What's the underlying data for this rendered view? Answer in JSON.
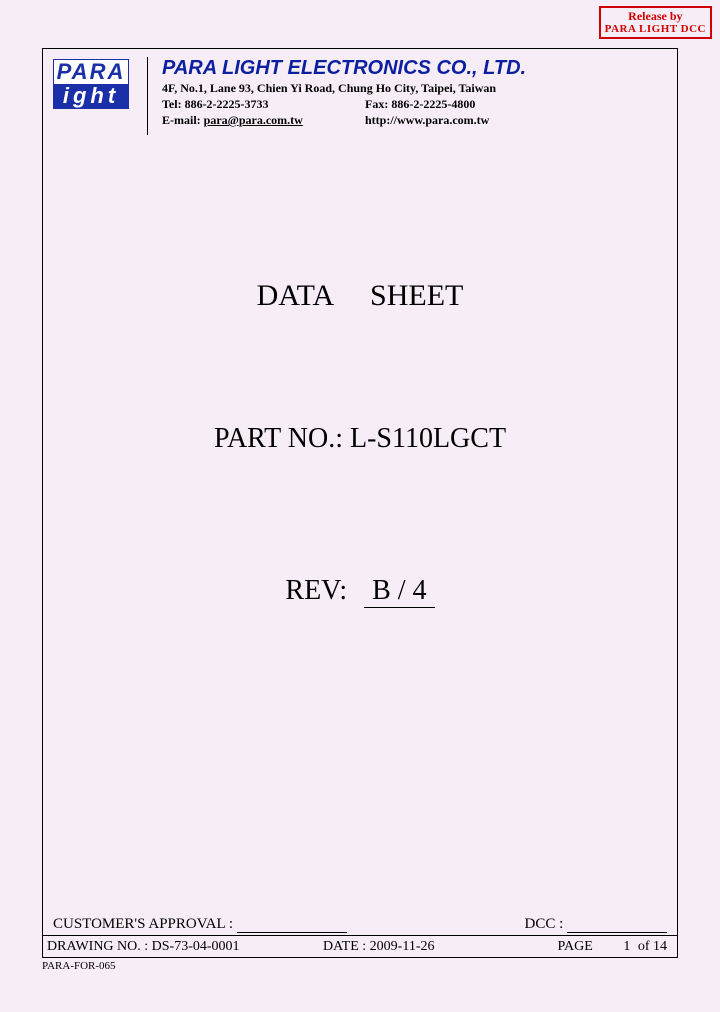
{
  "stamp": {
    "line1": "Release   by",
    "line2": "PARA LIGHT DCC"
  },
  "logo": {
    "top": "PARA",
    "bottom": "ight"
  },
  "company": {
    "name": "PARA LIGHT ELECTRONICS CO., LTD.",
    "address": "4F, No.1, Lane 93, Chien Yi Road, Chung Ho City, Taipei, Taiwan",
    "tel_label": "Tel: ",
    "tel": "886-2-2225-3733",
    "fax_label": "Fax: ",
    "fax": "886-2-2225-4800",
    "email_label": "E-mail: ",
    "email": "para@para.com.tw",
    "url": "http://www.para.com.tw"
  },
  "body": {
    "title": "DATA SHEET",
    "partno_label": "PART NO.: ",
    "partno": "L-S110LGCT",
    "rev_label": "REV:",
    "rev": "B / 4"
  },
  "footer": {
    "approval_label": "CUSTOMER'S APPROVAL :",
    "dcc_label": "DCC :",
    "drawing_label": "DRAWING NO. : ",
    "drawing_no": "DS-73-04-0001",
    "date_label": "DATE : ",
    "date": "2009-11-26",
    "page_label": "PAGE",
    "page_current": "1",
    "page_of": "of",
    "page_total": "14"
  },
  "form_no": "PARA-FOR-065"
}
